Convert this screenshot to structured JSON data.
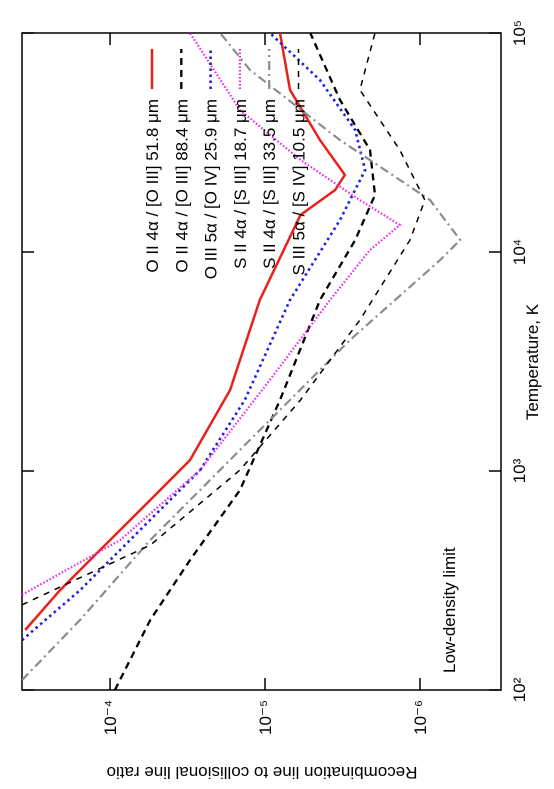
{
  "chart_data": {
    "type": "line",
    "xlabel": "Temperature, K",
    "ylabel": "Recombination line to collisional line ratio",
    "annotation": "Low-density limit",
    "xscale": "log",
    "yscale": "log",
    "xlim": [
      100,
      100000
    ],
    "ylim": [
      3e-07,
      0.00037
    ],
    "xticks": [
      {
        "value": 100,
        "label": "10²"
      },
      {
        "value": 1000,
        "label": "10³"
      },
      {
        "value": 10000,
        "label": "10⁴"
      },
      {
        "value": 100000,
        "label": "10⁵"
      }
    ],
    "yticks": [
      {
        "value": 1e-06,
        "label": "10⁻⁶"
      },
      {
        "value": 1e-05,
        "label": "10⁻⁵"
      },
      {
        "value": 0.0001,
        "label": "10⁻⁴"
      }
    ],
    "legend": "upper right",
    "series": [
      {
        "name": "O II 4α / [O III] 51.8 μm",
        "color": "#e8221b",
        "dash": "solid",
        "x": [
          188,
          286,
          436,
          737,
          1122,
          2344,
          6040,
          14750,
          19190,
          22490,
          32430,
          54950,
          100000
        ],
        "values": [
          0.000353,
          0.00021,
          0.000116,
          5.5e-05,
          3.05e-05,
          1.68e-05,
          1.08e-05,
          5.9e-06,
          3.53e-06,
          3.05e-06,
          4.42e-06,
          6.9e-06,
          8e-06
        ]
      },
      {
        "name": "O II 4α / [O III] 88.4 μm",
        "color": "#000000",
        "dash": "dashed",
        "x": [
          100,
          209,
          392,
          819,
          2109,
          6040,
          11350,
          18200,
          29240,
          49430,
          100000
        ],
        "values": [
          9.3e-05,
          5.5e-05,
          3.05e-05,
          1.45e-05,
          8e-06,
          4.42e-06,
          2.62e-06,
          1.95e-06,
          2.1e-06,
          3.28e-06,
          5.1e-06
        ]
      },
      {
        "name": "O III 5α / [O IV] 25.9 μm",
        "color": "#1f1fe0",
        "dash": "dotted",
        "x": [
          169,
          286,
          538,
          1011,
          2109,
          6040,
          14000,
          23660,
          36060,
          60950,
          100000
        ],
        "values": [
          0.00037,
          0.000156,
          6.4e-05,
          2.62e-05,
          1.35e-05,
          6.9e-06,
          3.28e-06,
          2.26e-06,
          2.62e-06,
          4.42e-06,
          9.3e-06
        ]
      },
      {
        "name": "S II 4α / [S III] 18.7 μm",
        "color": "#ee22ee",
        "dash": "fine-dotted",
        "x": [
          272,
          484,
          1011,
          2606,
          6040,
          10210,
          13280,
          17260,
          26300,
          44460,
          100000
        ],
        "values": [
          0.00037,
          8.6e-05,
          2.62e-05,
          9.3e-06,
          3.81e-06,
          2.1e-06,
          1.35e-06,
          2.44e-06,
          5.9e-06,
          1.45e-05,
          3.05e-05
        ]
      },
      {
        "name": "S II 4α / [S III] 33.5 μm",
        "color": "#8c8c8c",
        "dash": "dash-dot",
        "x": [
          111,
          209,
          484,
          1387,
          3963,
          9190,
          11350,
          17260,
          32430,
          67760,
          100000
        ],
        "values": [
          0.00037,
          0.000156,
          5.5e-05,
          1.25e-05,
          2.83e-06,
          7.4e-07,
          5.5e-07,
          8.6e-07,
          3.28e-06,
          1.25e-05,
          1.95e-05
        ]
      },
      {
        "name": "S III 5α / [S IV] 10.5 μm",
        "color": "#000000",
        "dash": "thin-dashed",
        "x": [
          245,
          459,
          1011,
          2109,
          4890,
          11350,
          17260,
          29240,
          54950,
          100000
        ],
        "values": [
          0.00037,
          5.5e-05,
          1.45e-05,
          5.9e-06,
          2.44e-06,
          1.16e-06,
          9.3e-07,
          1.35e-06,
          2.44e-06,
          1.95e-06
        ]
      }
    ]
  }
}
